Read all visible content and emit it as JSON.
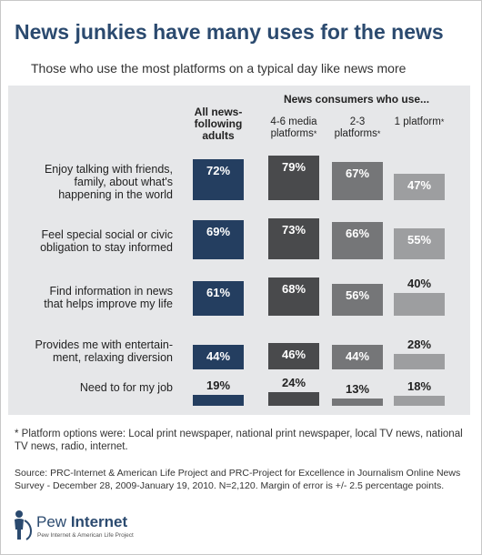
{
  "title": "News junkies have many uses for the news",
  "subtitle": "Those who use the most platforms on a typical day like news more",
  "chart_data": {
    "type": "bar",
    "title": "News junkies have many uses for the news",
    "subtitle": "Those who use the most platforms on a typical day like news more",
    "group_header": "News consumers who use...",
    "categories": [
      "Enjoy talking with friends, family, about what's happening in the world",
      "Feel special social or civic obligation to stay informed",
      "Find information in news that helps improve my life",
      "Provides me with entertain-ment, relaxing diversion",
      "Need to for my job"
    ],
    "category_lines": [
      [
        "Enjoy talking with friends,",
        "family, about what's",
        "happening in the world"
      ],
      [
        "Feel special social or civic",
        "obligation to stay informed"
      ],
      [
        "Find information in news",
        "that helps improve my life"
      ],
      [
        "Provides me with entertain-",
        "ment, relaxing diversion"
      ],
      [
        "Need to for my job"
      ]
    ],
    "series": [
      {
        "name": "All news-following adults",
        "header_lines": [
          "All news-",
          "following",
          "adults"
        ],
        "star": false,
        "color": "#243e60",
        "label_color": "#ffffff",
        "values": [
          72,
          69,
          61,
          44,
          19
        ],
        "labels": [
          "72%",
          "69%",
          "61%",
          "44%",
          "19%"
        ]
      },
      {
        "name": "4-6 media platforms",
        "header_lines": [
          "4-6 media",
          "platforms"
        ],
        "star": true,
        "color": "#494a4c",
        "label_color": "#ffffff",
        "values": [
          79,
          73,
          68,
          46,
          24
        ],
        "labels": [
          "79%",
          "73%",
          "68%",
          "46%",
          "24%"
        ]
      },
      {
        "name": "2-3 platforms",
        "header_lines": [
          "2-3",
          "platforms"
        ],
        "star": true,
        "color": "#757678",
        "label_color": "#ffffff",
        "values": [
          67,
          66,
          56,
          44,
          13
        ],
        "labels": [
          "67%",
          "66%",
          "56%",
          "44%",
          "13%"
        ]
      },
      {
        "name": "1 platform",
        "header_lines": [
          "1 platform"
        ],
        "star": true,
        "color": "#9d9ea0",
        "label_color": "#ffffff",
        "values": [
          47,
          55,
          40,
          28,
          18
        ],
        "labels": [
          "47%",
          "55%",
          "40%",
          "28%",
          "18%"
        ]
      }
    ],
    "ylim": [
      0,
      100
    ],
    "star_symbol": "*"
  },
  "footnote": "* Platform options were: Local print newspaper, national print newspaper, local TV news, national TV news, radio, internet.",
  "source": "Source: PRC-Internet & American Life Project and PRC-Project for Excellence in Journalism Online News Survey - December 28, 2009-January 19, 2010. N=2,120. Margin of error is +/- 2.5 percentage points.",
  "logo": {
    "name": "Pew Internet",
    "word1": "Pew",
    "word2": "Internet",
    "tagline": "Pew Internet & American Life Project",
    "color": "#2b4a6f"
  }
}
